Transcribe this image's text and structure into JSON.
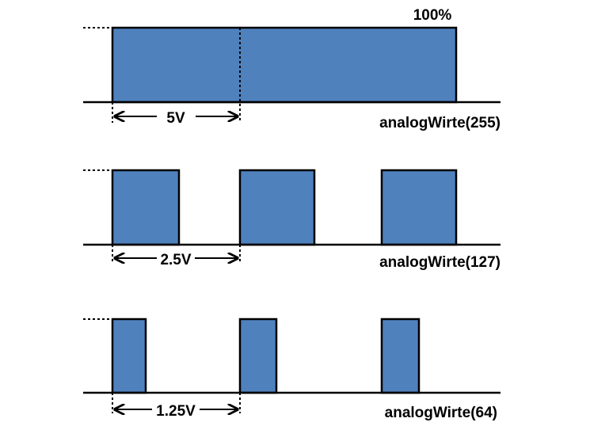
{
  "diagram": {
    "colors": {
      "pulse_fill": "#4f81bd",
      "stroke": "#000000",
      "background": "#ffffff"
    },
    "rows": [
      {
        "duty_label": "100%",
        "voltage_label": "5V",
        "function_label": "analogWirte(255)"
      },
      {
        "duty_label": "",
        "voltage_label": "2.5V",
        "function_label": "analogWirte(127)"
      },
      {
        "duty_label": "",
        "voltage_label": "1.25V",
        "function_label": "analogWirte(64)"
      }
    ]
  }
}
